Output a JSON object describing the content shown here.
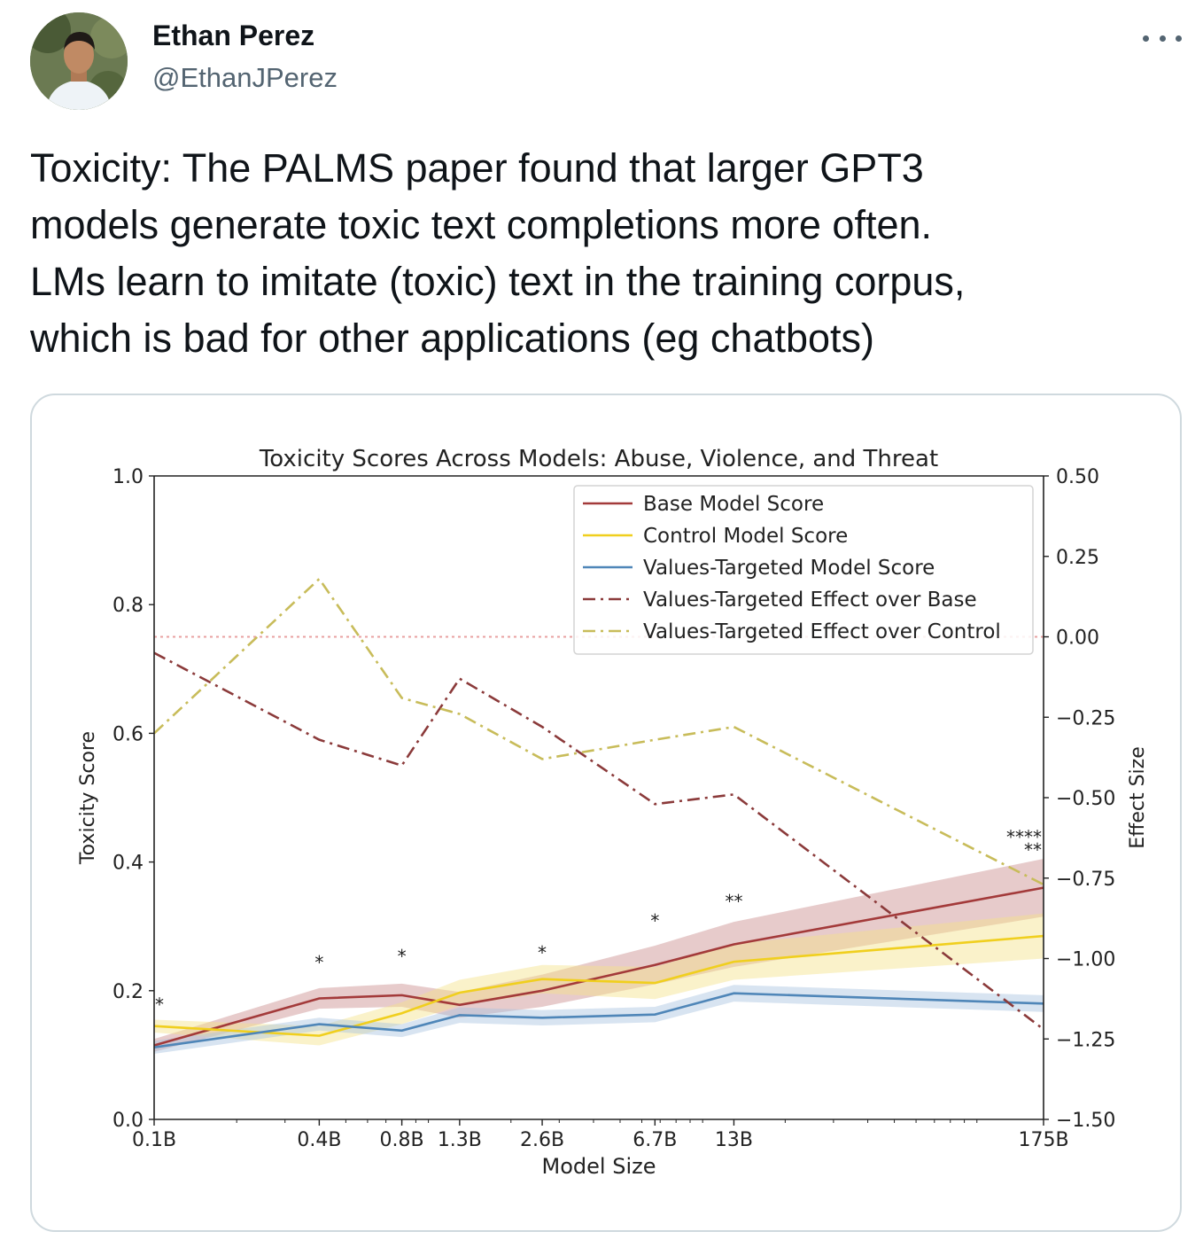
{
  "tweet": {
    "author_name": "Ethan Perez",
    "author_handle": "@EthanJPerez",
    "more_icon": "more-horizontal-icon",
    "text_lines": [
      "Toxicity: The PALMS paper found that larger GPT3",
      "models generate toxic text completions more often.",
      "LMs learn to imitate (toxic) text in the training corpus,",
      "which is bad for other applications (eg chatbots)"
    ]
  },
  "chart_data": {
    "type": "line",
    "title": "Toxicity Scores Across Models: Abuse, Violence, and Threat",
    "xlabel": "Model Size",
    "ylabel": "Toxicity Score",
    "y2label": "Effect Size",
    "x": [
      "0.1B",
      "0.4B",
      "0.8B",
      "1.3B",
      "2.6B",
      "6.7B",
      "13B",
      "175B"
    ],
    "x_scale": "log",
    "x_params_billion": [
      0.1,
      0.4,
      0.8,
      1.3,
      2.6,
      6.7,
      13,
      175
    ],
    "ylim": [
      0.0,
      1.0
    ],
    "yticks": [
      "0.0",
      "0.2",
      "0.4",
      "0.6",
      "0.8",
      "1.0"
    ],
    "y2lim": [
      -1.5,
      0.5
    ],
    "y2ticks": [
      "−1.50",
      "−1.25",
      "−1.00",
      "−0.75",
      "−0.50",
      "−0.25",
      "0.00",
      "0.25",
      "0.50"
    ],
    "legend_position": "top-right",
    "series": [
      {
        "name": "Base Model Score",
        "axis": "left",
        "style": "solid",
        "color": "#a33a3a",
        "band_color": "#c98b8b",
        "values": [
          0.115,
          0.188,
          0.193,
          0.178,
          0.2,
          0.24,
          0.272,
          0.36
        ],
        "band": [
          0.01,
          0.016,
          0.018,
          0.02,
          0.025,
          0.03,
          0.035,
          0.045
        ]
      },
      {
        "name": "Control Model Score",
        "axis": "left",
        "style": "solid",
        "color": "#f0cf1e",
        "band_color": "#f3e28a",
        "values": [
          0.145,
          0.13,
          0.165,
          0.197,
          0.218,
          0.212,
          0.245,
          0.285
        ],
        "band": [
          0.01,
          0.015,
          0.017,
          0.02,
          0.022,
          0.025,
          0.028,
          0.035
        ]
      },
      {
        "name": "Values-Targeted Model Score",
        "axis": "left",
        "style": "solid",
        "color": "#4f86b8",
        "band_color": "#a9c4df",
        "values": [
          0.112,
          0.148,
          0.138,
          0.162,
          0.158,
          0.163,
          0.196,
          0.18
        ],
        "band": [
          0.01,
          0.01,
          0.01,
          0.012,
          0.012,
          0.012,
          0.013,
          0.013
        ]
      },
      {
        "name": "Values-Targeted Effect over Base",
        "axis": "right",
        "style": "dashdot",
        "color": "#8b3a3a",
        "values": [
          -0.05,
          -0.32,
          -0.4,
          -0.13,
          -0.28,
          -0.52,
          -0.49,
          -1.22
        ]
      },
      {
        "name": "Values-Targeted Effect over Control",
        "axis": "right",
        "style": "dashdot",
        "color": "#c8bc5a",
        "values": [
          -0.3,
          0.18,
          -0.19,
          -0.24,
          -0.38,
          -0.32,
          -0.28,
          -0.77
        ]
      }
    ],
    "reference_line": {
      "axis": "right",
      "value": 0.0,
      "style": "dotted",
      "color": "#e8a0a0"
    },
    "annotations": [
      {
        "text": "*",
        "x": "0.1B",
        "y": 0.18,
        "color": "#e0c23c"
      },
      {
        "text": "*",
        "x": "0.4B",
        "y": 0.245,
        "color": "#a33a3a"
      },
      {
        "text": "*",
        "x": "0.8B",
        "y": 0.255,
        "color": "#a33a3a"
      },
      {
        "text": "*",
        "x": "2.6B",
        "y": 0.26,
        "color": "#e0c23c"
      },
      {
        "text": "*",
        "x": "6.7B",
        "y": 0.31,
        "color": "#a33a3a"
      },
      {
        "text": "**",
        "x": "13B",
        "y": 0.34,
        "color": "#a33a3a"
      },
      {
        "text": "****",
        "x": "175B",
        "y": 0.44,
        "color": "#a33a3a"
      },
      {
        "text": "**",
        "x": "175B",
        "y": 0.42,
        "color": "#e0c23c"
      }
    ]
  }
}
